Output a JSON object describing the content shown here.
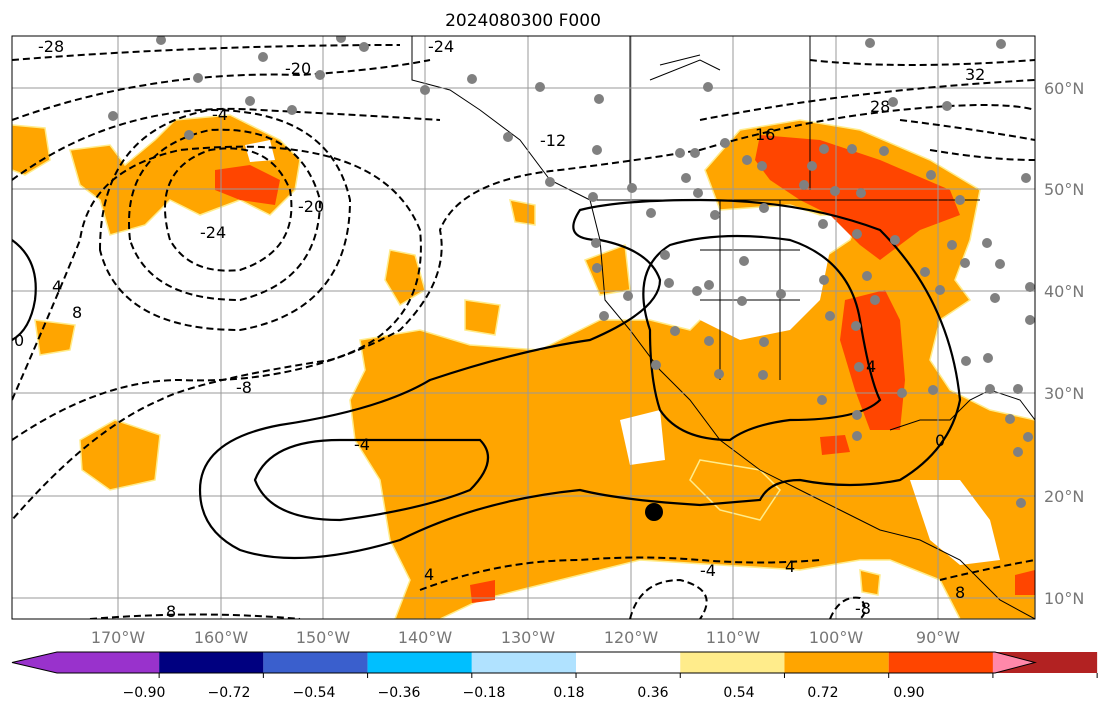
{
  "title": "2024080300 F000",
  "lon_ticks": [
    "170°W",
    "160°W",
    "150°W",
    "140°W",
    "130°W",
    "120°W",
    "110°W",
    "100°W",
    "90°W"
  ],
  "lat_ticks": [
    "60°N",
    "50°N",
    "40°N",
    "30°N",
    "20°N",
    "10°N"
  ],
  "contour_labels": [
    "-28",
    "-24",
    "-20",
    "32",
    "28",
    "16",
    "-12",
    "-24",
    "-20",
    "4",
    "8",
    "0",
    "-8",
    "-4",
    "4",
    "-4",
    "4",
    "0",
    "4",
    "8",
    "-8",
    "8",
    "-4"
  ],
  "colorbar": {
    "colors": [
      "#9932CC",
      "#000080",
      "#3A5FCD",
      "#00BFFF",
      "#B0E2FF",
      "#FFFFFF",
      "#FFEC8B",
      "#FFA500",
      "#FF4500",
      "#B22222",
      "#FF88AA"
    ],
    "labels": [
      "−0.90",
      "−0.72",
      "−0.54",
      "−0.36",
      "−0.18",
      "0.18",
      "0.36",
      "0.54",
      "0.72",
      "0.90"
    ]
  }
}
